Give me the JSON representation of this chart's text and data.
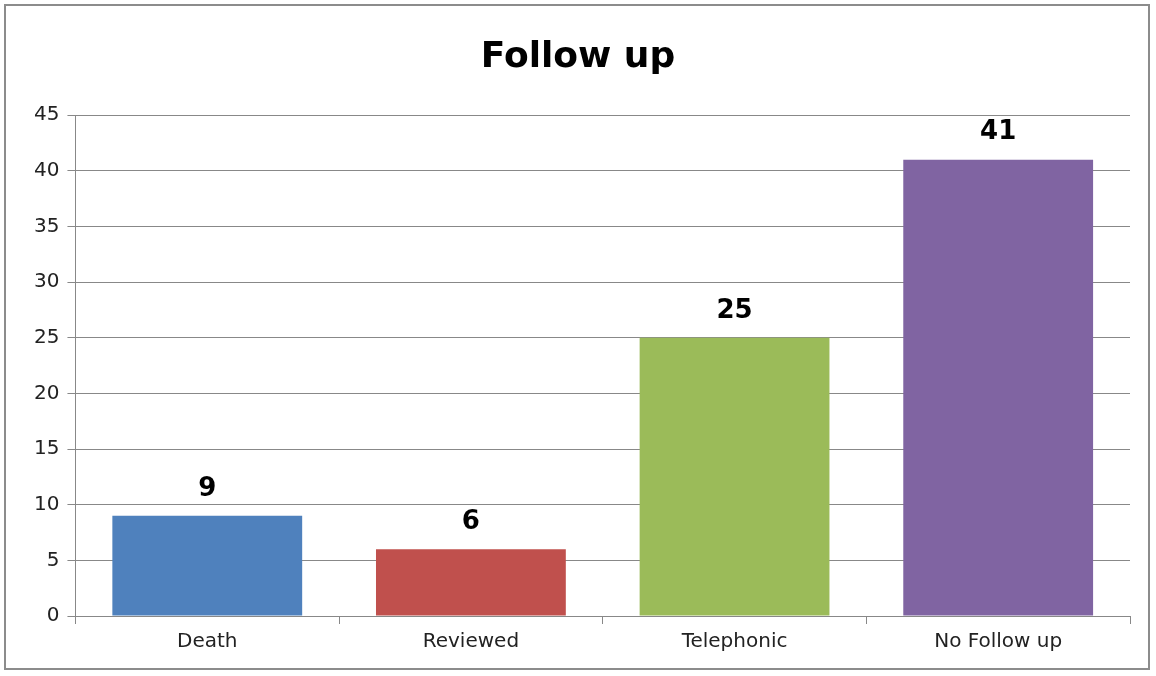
{
  "chart_data": {
    "type": "bar",
    "title": "Follow up",
    "categories": [
      "Death",
      "Reviewed",
      "Telephonic",
      "No Follow up"
    ],
    "values": [
      9,
      6,
      25,
      41
    ],
    "colors": [
      "#4f81bd",
      "#c0504d",
      "#9bbb59",
      "#8064a2"
    ],
    "ylim": [
      0,
      45
    ],
    "yticks": [
      0,
      5,
      10,
      15,
      20,
      25,
      30,
      35,
      40,
      45
    ],
    "grid": "y",
    "data_labels": true
  }
}
